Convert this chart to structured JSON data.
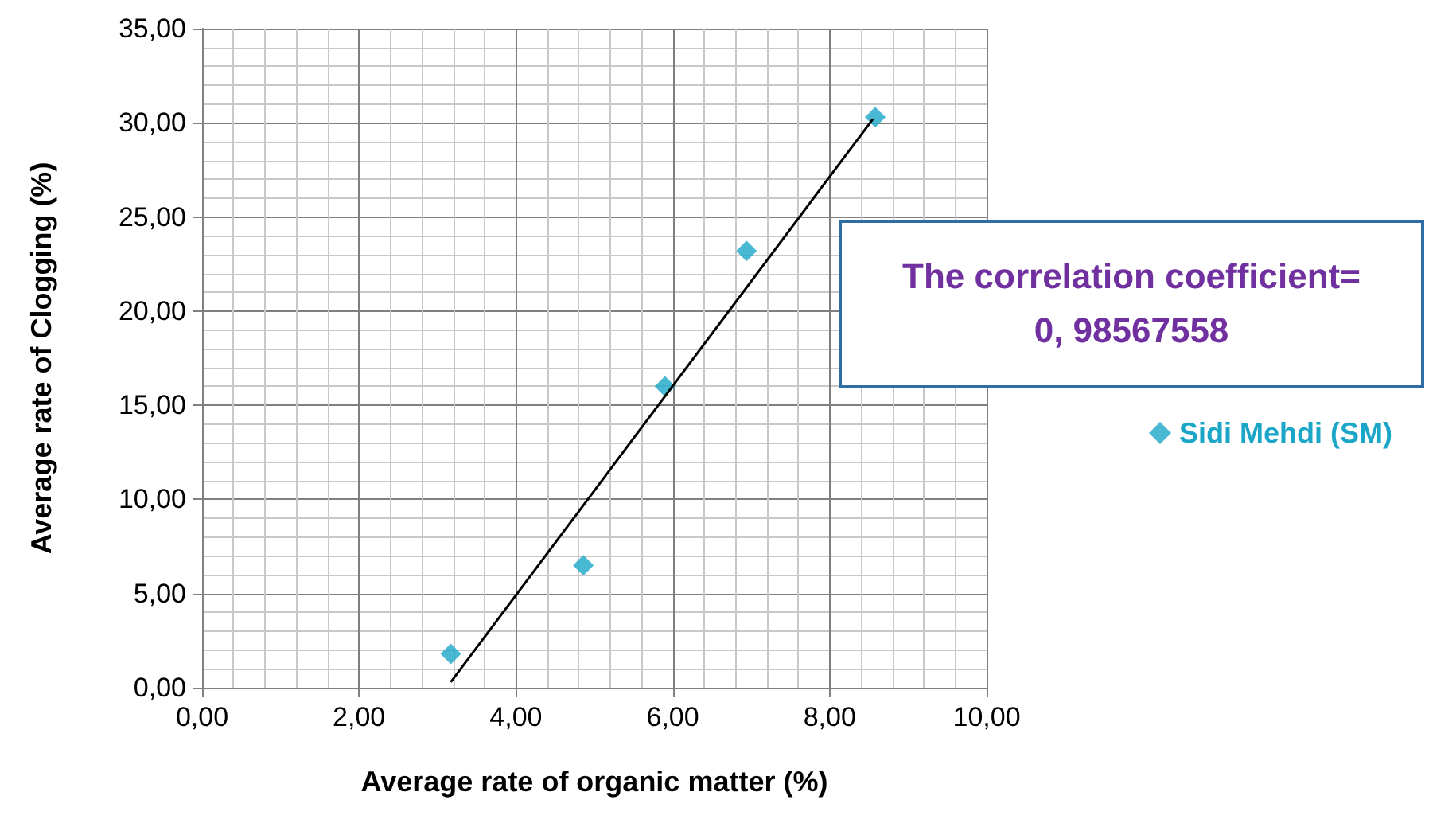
{
  "chart_data": {
    "type": "scatter",
    "xlabel": "Average rate of organic matter (%)",
    "ylabel": "Average rate of Clogging (%)",
    "series": [
      {
        "name": "Sidi Mehdi (SM)",
        "color": "#1ba6c8",
        "marker": "diamond",
        "x": [
          3.17,
          4.86,
          5.9,
          6.94,
          8.58
        ],
        "values": [
          1.8,
          6.5,
          16.0,
          23.2,
          30.3
        ]
      },
      {
        "type": "line",
        "color": "#000000",
        "marker": "none",
        "line_style": "solid",
        "x": [
          3.17,
          8.55
        ],
        "values": [
          0.3,
          30.2
        ]
      }
    ],
    "annotations": [
      "The correlation coefficient=\n0, 98567558"
    ],
    "xlim": [
      0,
      10
    ],
    "ylim": [
      0,
      35
    ],
    "xticks": [
      {
        "value": 0,
        "label": "0,00"
      },
      {
        "value": 2,
        "label": "2,00"
      },
      {
        "value": 4,
        "label": "4,00"
      },
      {
        "value": 6,
        "label": "6,00"
      },
      {
        "value": 8,
        "label": "8,00"
      },
      {
        "value": 10,
        "label": "10,00"
      }
    ],
    "yticks": [
      {
        "value": 0,
        "label": "0,00"
      },
      {
        "value": 5,
        "label": "5,00"
      },
      {
        "value": 10,
        "label": "10,00"
      },
      {
        "value": 15,
        "label": "15,00"
      },
      {
        "value": 20,
        "label": "20,00"
      },
      {
        "value": 25,
        "label": "25,00"
      },
      {
        "value": 30,
        "label": "30,00"
      },
      {
        "value": 35,
        "label": "35,00"
      }
    ],
    "grid": true,
    "legend": "right"
  }
}
